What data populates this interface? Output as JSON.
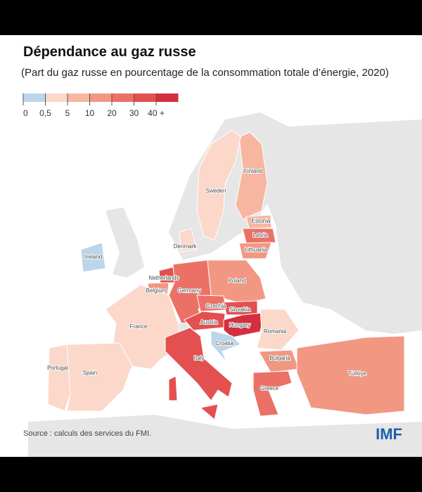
{
  "header": {
    "title": "Dépendance au gaz russe",
    "subtitle": "(Part du gaz russe en pourcentage de la consommation totale d’énergie, 2020)"
  },
  "legend": {
    "ticks": [
      "0",
      "0,5",
      "5",
      "10",
      "20",
      "30",
      "40 +"
    ],
    "colors": [
      "#bdd5ea",
      "#fbd8ca",
      "#f7b6a0",
      "#f29782",
      "#eb7166",
      "#e3504f",
      "#d42f3f"
    ]
  },
  "countries": [
    {
      "name": "Finland",
      "color": "#f7b6a0"
    },
    {
      "name": "Sweden",
      "color": "#fbd8ca"
    },
    {
      "name": "Estonia",
      "color": "#f7b6a0"
    },
    {
      "name": "Latvia",
      "color": "#eb7166"
    },
    {
      "name": "Lithuania",
      "color": "#f29782"
    },
    {
      "name": "Denmark",
      "color": "#fbd8ca"
    },
    {
      "name": "Ireland",
      "color": "#bdd5ea"
    },
    {
      "name": "Netherlands",
      "color": "#e3504f"
    },
    {
      "name": "Belgium",
      "color": "#f29782"
    },
    {
      "name": "Germany",
      "color": "#eb7166"
    },
    {
      "name": "Poland",
      "color": "#f29782"
    },
    {
      "name": "Czechia",
      "color": "#eb7166"
    },
    {
      "name": "Slovakia",
      "color": "#e3504f"
    },
    {
      "name": "Austria",
      "color": "#e3504f"
    },
    {
      "name": "Hungary",
      "color": "#d42f3f"
    },
    {
      "name": "Croatia",
      "color": "#bdd5ea"
    },
    {
      "name": "Romania",
      "color": "#fbd8ca"
    },
    {
      "name": "Bulgaria",
      "color": "#f29782"
    },
    {
      "name": "Greece",
      "color": "#eb7166"
    },
    {
      "name": "Türkiye",
      "color": "#f29782"
    },
    {
      "name": "France",
      "color": "#fbd8ca"
    },
    {
      "name": "Spain",
      "color": "#fbd8ca"
    },
    {
      "name": "Portugal",
      "color": "#fbd8ca"
    },
    {
      "name": "Italy",
      "color": "#e3504f"
    }
  ],
  "footer": {
    "source": "Source : calculs des services du FMI.",
    "logo": "IMF"
  }
}
